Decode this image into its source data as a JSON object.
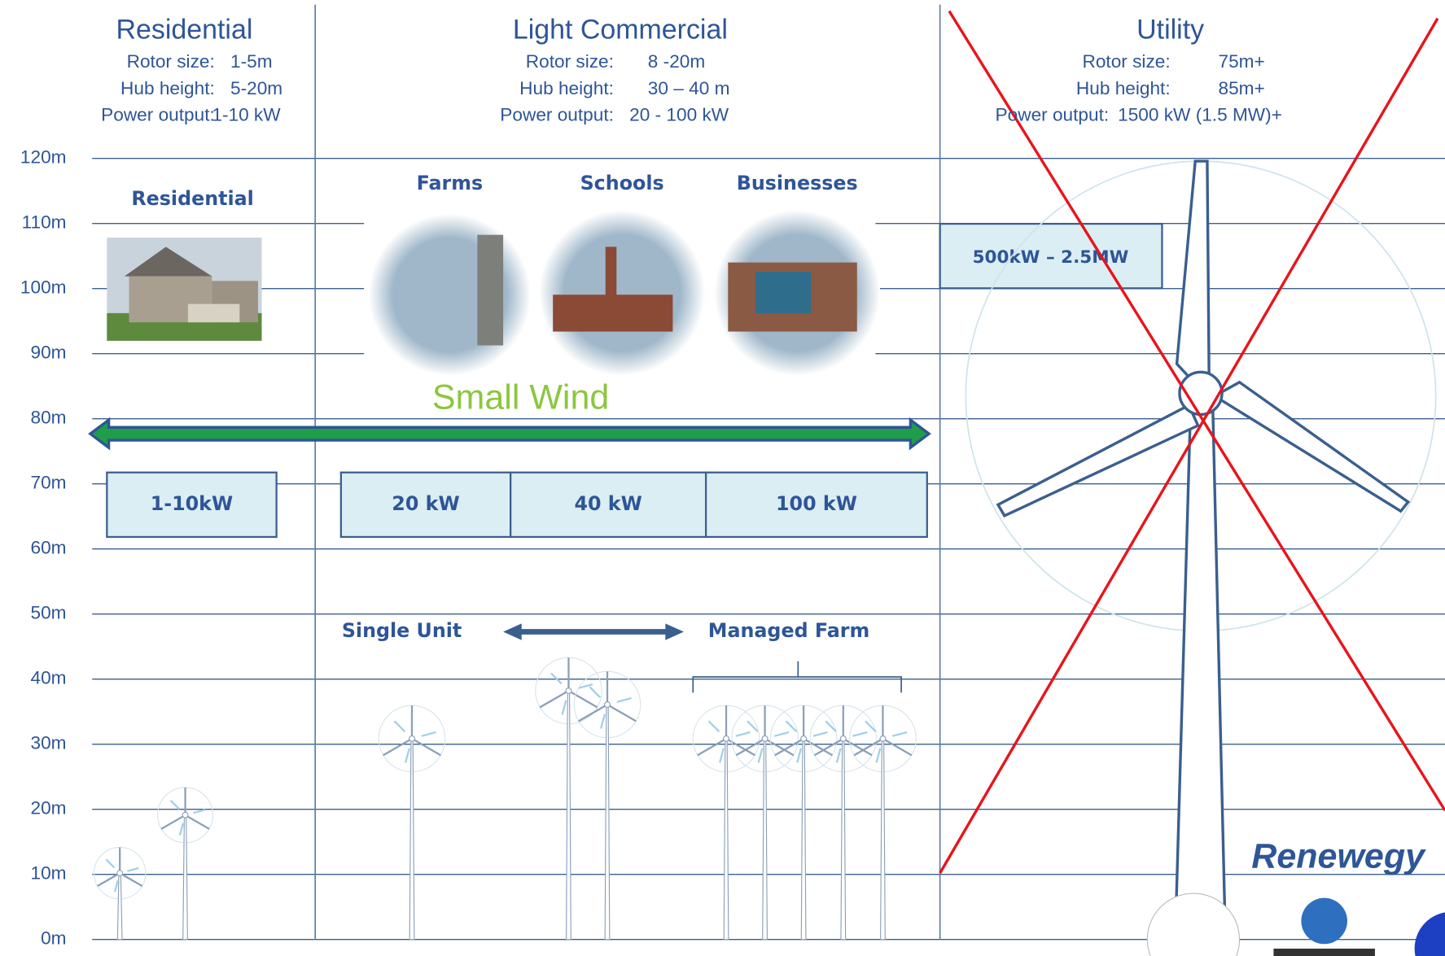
{
  "columns": [
    {
      "title": "Residential",
      "rows": [
        [
          "Rotor size:",
          "1-5m"
        ],
        [
          "Hub height:",
          "5-20m"
        ],
        [
          "Power output:",
          "1-10 kW"
        ]
      ]
    },
    {
      "title": "Light Commercial",
      "rows": [
        [
          "Rotor size:",
          "8 -20m"
        ],
        [
          "Hub height:",
          "30 – 40 m"
        ],
        [
          "Power output:",
          "20 - 100 kW"
        ]
      ]
    },
    {
      "title": "Utility",
      "rows": [
        [
          "Rotor size:",
          "75m+"
        ],
        [
          "Hub height:",
          "85m+"
        ],
        [
          "Power output:",
          "1500 kW (1.5 MW)+"
        ]
      ]
    }
  ],
  "heights": [
    "120m",
    "110m",
    "100m",
    "90m",
    "80m",
    "70m",
    "60m",
    "50m",
    "40m",
    "30m",
    "20m",
    "10m",
    "0m"
  ],
  "residential_label": "Residential",
  "site_labels": [
    "Farms",
    "Schools",
    "Businesses"
  ],
  "small_wind": "Small Wind",
  "power_boxes": [
    "1-10kW",
    "20 kW",
    "40 kW",
    "100 kW"
  ],
  "utility_box": "500kW – 2.5MW",
  "single_unit": "Single Unit",
  "managed_farm": "Managed Farm",
  "brand": "Renewegy"
}
